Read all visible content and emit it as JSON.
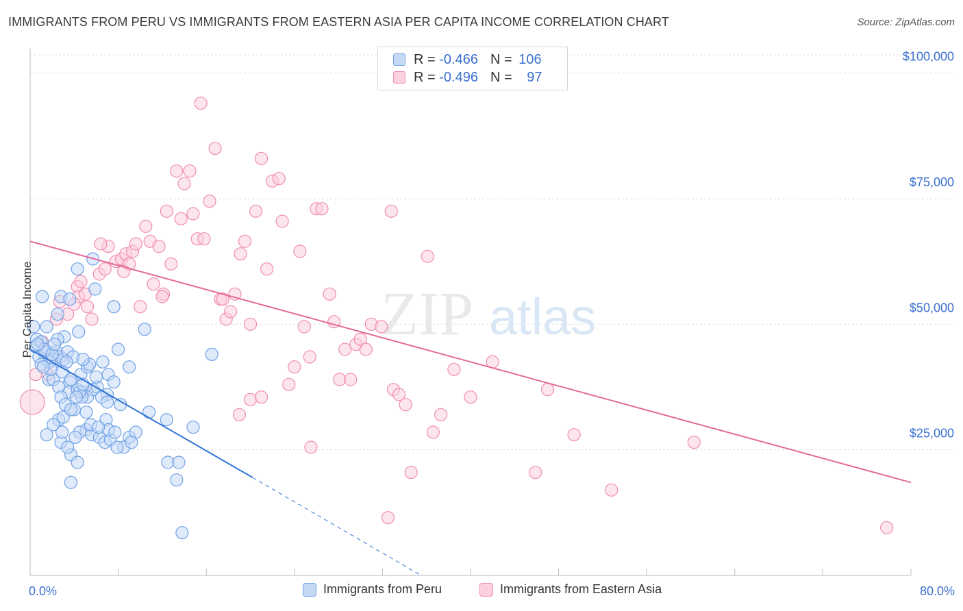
{
  "title": "IMMIGRANTS FROM PERU VS IMMIGRANTS FROM EASTERN ASIA PER CAPITA INCOME CORRELATION CHART",
  "source": "Source: ZipAtlas.com",
  "watermark": {
    "zip": "ZIP",
    "atlas": "atlas"
  },
  "legend_top": {
    "rows": [
      {
        "r_label": "R = ",
        "r_value": "-0.466",
        "n_label": "N = ",
        "n_value": "106",
        "color": "#6ea0e6"
      },
      {
        "r_label": "R = ",
        "r_value": "-0.496",
        "n_label": "N = ",
        "n_value": "97",
        "color": "#f08cb0"
      }
    ]
  },
  "chart_data": {
    "type": "scatter",
    "title": "IMMIGRANTS FROM PERU VS IMMIGRANTS FROM EASTERN ASIA PER CAPITA INCOME CORRELATION CHART",
    "xlabel": "",
    "ylabel": "Per Capita Income",
    "xlim": [
      0,
      80
    ],
    "ylim": [
      0,
      105000
    ],
    "x_tick_labels": {
      "left": "0.0%",
      "right": "80.0%"
    },
    "y_ticks": [
      {
        "value": 25000,
        "label": "$25,000"
      },
      {
        "value": 50000,
        "label": "$50,000"
      },
      {
        "value": 75000,
        "label": "$75,000"
      },
      {
        "value": 100000,
        "label": "$100,000"
      }
    ],
    "grid": true,
    "series": [
      {
        "name": "Immigrants from Peru",
        "color": "#6ea0e6",
        "line_color": "#2f74d6",
        "trend": {
          "x0": 0,
          "y0": 45000,
          "x1": 20.2,
          "y1": 19500,
          "dash_to_x": 35.5,
          "dash_to_y": 0
        },
        "points": [
          [
            0.3,
            49500
          ],
          [
            0.6,
            47000
          ],
          [
            0.5,
            45500
          ],
          [
            1.0,
            46500
          ],
          [
            1.2,
            44500
          ],
          [
            1.6,
            44500
          ],
          [
            1.4,
            43000
          ],
          [
            0.8,
            43500
          ],
          [
            2.4,
            44500
          ],
          [
            2.1,
            43000
          ],
          [
            1.8,
            42500
          ],
          [
            2.7,
            43500
          ],
          [
            3.0,
            43000
          ],
          [
            1.0,
            42000
          ],
          [
            1.1,
            55500
          ],
          [
            2.8,
            55500
          ],
          [
            3.6,
            55000
          ],
          [
            2.5,
            52000
          ],
          [
            3.1,
            47500
          ],
          [
            4.4,
            48500
          ],
          [
            1.5,
            49500
          ],
          [
            4.3,
            61000
          ],
          [
            5.7,
            63000
          ],
          [
            5.9,
            57000
          ],
          [
            7.6,
            53500
          ],
          [
            8.0,
            45000
          ],
          [
            10.4,
            49000
          ],
          [
            16.5,
            44000
          ],
          [
            1.7,
            39000
          ],
          [
            2.1,
            39000
          ],
          [
            3.6,
            38500
          ],
          [
            3.5,
            36500
          ],
          [
            2.6,
            37500
          ],
          [
            4.3,
            37000
          ],
          [
            4.9,
            36500
          ],
          [
            5.7,
            37000
          ],
          [
            6.1,
            37500
          ],
          [
            4.6,
            40000
          ],
          [
            5.2,
            41500
          ],
          [
            5.4,
            42000
          ],
          [
            6.6,
            42500
          ],
          [
            7.1,
            40000
          ],
          [
            7.6,
            38500
          ],
          [
            9.0,
            41500
          ],
          [
            7.0,
            36000
          ],
          [
            5.2,
            35500
          ],
          [
            4.7,
            35500
          ],
          [
            4.5,
            36500
          ],
          [
            4.2,
            35500
          ],
          [
            2.8,
            35500
          ],
          [
            4.0,
            33000
          ],
          [
            2.6,
            31000
          ],
          [
            3.0,
            31500
          ],
          [
            5.1,
            32500
          ],
          [
            6.9,
            31000
          ],
          [
            5.1,
            29000
          ],
          [
            4.5,
            28500
          ],
          [
            5.6,
            28000
          ],
          [
            6.3,
            27500
          ],
          [
            6.8,
            26500
          ],
          [
            7.3,
            27000
          ],
          [
            9.0,
            27500
          ],
          [
            9.6,
            28500
          ],
          [
            7.1,
            29000
          ],
          [
            7.7,
            28500
          ],
          [
            8.5,
            25500
          ],
          [
            2.8,
            26500
          ],
          [
            3.7,
            24000
          ],
          [
            4.3,
            22500
          ],
          [
            3.7,
            18500
          ],
          [
            8.2,
            34000
          ],
          [
            10.8,
            32500
          ],
          [
            12.4,
            31000
          ],
          [
            14.8,
            29500
          ],
          [
            12.5,
            22500
          ],
          [
            13.5,
            22500
          ],
          [
            13.3,
            19000
          ],
          [
            13.8,
            8500
          ],
          [
            2.5,
            47000
          ],
          [
            3.4,
            44500
          ],
          [
            3.9,
            43500
          ],
          [
            4.8,
            43000
          ],
          [
            1.3,
            45000
          ],
          [
            2.0,
            44000
          ],
          [
            3.3,
            42500
          ],
          [
            1.9,
            41000
          ],
          [
            2.2,
            46000
          ],
          [
            0.7,
            46000
          ],
          [
            1.2,
            41500
          ],
          [
            2.9,
            40500
          ],
          [
            3.7,
            39000
          ],
          [
            4.8,
            38000
          ],
          [
            6.0,
            39500
          ],
          [
            6.5,
            35500
          ],
          [
            7.0,
            34500
          ],
          [
            3.2,
            34000
          ],
          [
            3.7,
            33000
          ],
          [
            5.5,
            30000
          ],
          [
            6.2,
            29500
          ],
          [
            2.1,
            30000
          ],
          [
            1.5,
            28000
          ],
          [
            4.1,
            27500
          ],
          [
            7.9,
            25500
          ],
          [
            9.2,
            26500
          ],
          [
            2.9,
            28500
          ],
          [
            3.4,
            25500
          ]
        ]
      },
      {
        "name": "Immigrants from Eastern Asia",
        "color": "#f08cb0",
        "line_color": "#e4699a",
        "trend": {
          "x0": 0,
          "y0": 66500,
          "x1": 80,
          "y1": 18500
        },
        "points": [
          [
            0.2,
            34500
          ],
          [
            0.5,
            40000
          ],
          [
            1.6,
            40000
          ],
          [
            1.1,
            46500
          ],
          [
            2.7,
            54500
          ],
          [
            3.4,
            52000
          ],
          [
            2.4,
            51000
          ],
          [
            4.3,
            57500
          ],
          [
            4.4,
            55500
          ],
          [
            4.6,
            58500
          ],
          [
            5.0,
            56000
          ],
          [
            5.2,
            53500
          ],
          [
            5.6,
            51000
          ],
          [
            6.3,
            60000
          ],
          [
            6.8,
            61000
          ],
          [
            7.1,
            65500
          ],
          [
            7.8,
            62500
          ],
          [
            8.3,
            63000
          ],
          [
            8.7,
            64000
          ],
          [
            9.0,
            62000
          ],
          [
            9.3,
            64500
          ],
          [
            9.6,
            66000
          ],
          [
            10.0,
            53500
          ],
          [
            10.5,
            69500
          ],
          [
            10.9,
            66500
          ],
          [
            11.2,
            58000
          ],
          [
            11.7,
            65500
          ],
          [
            12.1,
            56000
          ],
          [
            12.4,
            72500
          ],
          [
            12.8,
            62000
          ],
          [
            13.3,
            80500
          ],
          [
            13.7,
            71000
          ],
          [
            14.0,
            78000
          ],
          [
            14.5,
            80500
          ],
          [
            14.8,
            72000
          ],
          [
            15.2,
            67000
          ],
          [
            15.5,
            94000
          ],
          [
            15.8,
            67000
          ],
          [
            16.3,
            74500
          ],
          [
            16.8,
            85000
          ],
          [
            17.3,
            55000
          ],
          [
            17.8,
            51000
          ],
          [
            18.2,
            52500
          ],
          [
            18.6,
            56000
          ],
          [
            19.1,
            64000
          ],
          [
            19.5,
            66500
          ],
          [
            20.0,
            50000
          ],
          [
            20.5,
            72500
          ],
          [
            21.0,
            83000
          ],
          [
            21.5,
            61000
          ],
          [
            22.0,
            78500
          ],
          [
            22.6,
            79000
          ],
          [
            22.9,
            70500
          ],
          [
            23.5,
            38000
          ],
          [
            24.0,
            41500
          ],
          [
            24.5,
            64500
          ],
          [
            24.9,
            49500
          ],
          [
            25.4,
            43500
          ],
          [
            26.0,
            73000
          ],
          [
            26.5,
            73000
          ],
          [
            27.2,
            56000
          ],
          [
            27.6,
            50500
          ],
          [
            28.1,
            39000
          ],
          [
            28.6,
            45000
          ],
          [
            29.1,
            39000
          ],
          [
            29.6,
            46000
          ],
          [
            30.0,
            47000
          ],
          [
            30.5,
            45000
          ],
          [
            31.0,
            50000
          ],
          [
            31.9,
            49500
          ],
          [
            32.5,
            11500
          ],
          [
            32.8,
            72500
          ],
          [
            33.0,
            37000
          ],
          [
            33.5,
            36000
          ],
          [
            34.1,
            34000
          ],
          [
            34.6,
            20500
          ],
          [
            36.1,
            63500
          ],
          [
            36.6,
            28500
          ],
          [
            37.3,
            32000
          ],
          [
            38.5,
            41000
          ],
          [
            40.0,
            35500
          ],
          [
            42.0,
            42500
          ],
          [
            45.9,
            20500
          ],
          [
            47.0,
            37000
          ],
          [
            49.4,
            28000
          ],
          [
            52.8,
            17000
          ],
          [
            60.3,
            26500
          ],
          [
            77.8,
            9500
          ],
          [
            25.5,
            25500
          ],
          [
            19.0,
            32000
          ],
          [
            20.0,
            35000
          ],
          [
            21.0,
            35500
          ],
          [
            17.5,
            55000
          ],
          [
            12.0,
            55500
          ],
          [
            8.5,
            60500
          ],
          [
            6.4,
            66000
          ],
          [
            4.0,
            54000
          ]
        ]
      }
    ]
  },
  "bottom_legend": [
    {
      "label": "Immigrants from Peru",
      "color": "#6ea0e6"
    },
    {
      "label": "Immigrants from Eastern Asia",
      "color": "#f08cb0"
    }
  ]
}
